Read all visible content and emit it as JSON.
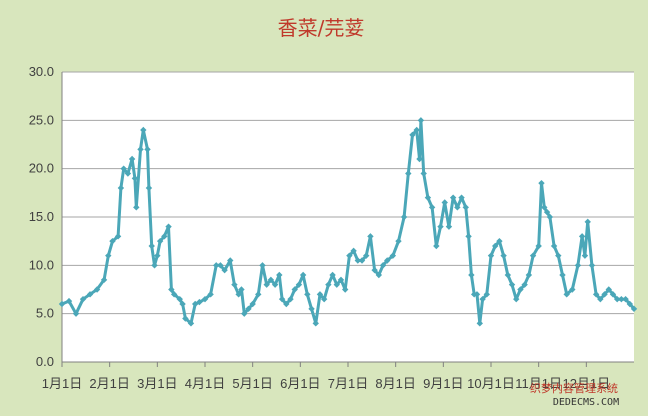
{
  "chart_data": {
    "type": "line",
    "title": "香菜/芫荽",
    "xlabel": "",
    "ylabel": "",
    "ylim": [
      0,
      30
    ],
    "yticks": [
      "0.0",
      "5.0",
      "10.0",
      "15.0",
      "20.0",
      "25.0",
      "30.0"
    ],
    "xticks": [
      "1月1日",
      "2月1日",
      "3月1日",
      "4月1日",
      "5月1日",
      "6月1日",
      "7月1日",
      "8月1日",
      "9月1日",
      "10月1日",
      "11月1日",
      "12月1日"
    ],
    "grid": "horizontal",
    "line_color": "#4ba7b8",
    "series": [
      {
        "values": [
          [
            0,
            6.0
          ],
          [
            5,
            6.3
          ],
          [
            10,
            5.0
          ],
          [
            15,
            6.5
          ],
          [
            20,
            7.0
          ],
          [
            25,
            7.5
          ],
          [
            30,
            8.5
          ],
          [
            33,
            11.0
          ],
          [
            36,
            12.5
          ],
          [
            40,
            13.0
          ],
          [
            42,
            18.0
          ],
          [
            44,
            20.0
          ],
          [
            47,
            19.5
          ],
          [
            50,
            21.0
          ],
          [
            52,
            19.0
          ],
          [
            53,
            16.0
          ],
          [
            56,
            22.0
          ],
          [
            58,
            24.0
          ],
          [
            61,
            22.0
          ],
          [
            62,
            18.0
          ],
          [
            64,
            12.0
          ],
          [
            66,
            10.0
          ],
          [
            68,
            11.0
          ],
          [
            70,
            12.5
          ],
          [
            73,
            13.0
          ],
          [
            76,
            14.0
          ],
          [
            78,
            7.5
          ],
          [
            80,
            7.0
          ],
          [
            84,
            6.5
          ],
          [
            86,
            6.0
          ],
          [
            88,
            4.5
          ],
          [
            92,
            4.0
          ],
          [
            95,
            6.0
          ],
          [
            98,
            6.2
          ],
          [
            102,
            6.5
          ],
          [
            106,
            7.0
          ],
          [
            110,
            10.0
          ],
          [
            113,
            10.0
          ],
          [
            116,
            9.5
          ],
          [
            120,
            10.5
          ],
          [
            123,
            8.0
          ],
          [
            126,
            7.0
          ],
          [
            128,
            7.5
          ],
          [
            130,
            5.0
          ],
          [
            133,
            5.5
          ],
          [
            136,
            6.0
          ],
          [
            140,
            7.0
          ],
          [
            143,
            10.0
          ],
          [
            146,
            8.0
          ],
          [
            149,
            8.5
          ],
          [
            152,
            8.0
          ],
          [
            155,
            9.0
          ],
          [
            157,
            6.5
          ],
          [
            160,
            6.0
          ],
          [
            163,
            6.5
          ],
          [
            166,
            7.5
          ],
          [
            169,
            8.0
          ],
          [
            172,
            9.0
          ],
          [
            175,
            7.0
          ],
          [
            178,
            5.5
          ],
          [
            181,
            4.0
          ],
          [
            184,
            7.0
          ],
          [
            187,
            6.5
          ],
          [
            190,
            8.0
          ],
          [
            193,
            9.0
          ],
          [
            196,
            8.0
          ],
          [
            199,
            8.5
          ],
          [
            202,
            7.5
          ],
          [
            205,
            11.0
          ],
          [
            208,
            11.5
          ],
          [
            211,
            10.5
          ],
          [
            214,
            10.5
          ],
          [
            217,
            11.0
          ],
          [
            220,
            13.0
          ],
          [
            223,
            9.5
          ],
          [
            226,
            9.0
          ],
          [
            229,
            10.0
          ],
          [
            232,
            10.5
          ],
          [
            236,
            11.0
          ],
          [
            240,
            12.5
          ],
          [
            244,
            15.0
          ],
          [
            247,
            19.5
          ],
          [
            250,
            23.5
          ],
          [
            253,
            24.0
          ],
          [
            255,
            21.0
          ],
          [
            256,
            25.0
          ],
          [
            258,
            19.5
          ],
          [
            261,
            17.0
          ],
          [
            264,
            16.0
          ],
          [
            267,
            12.0
          ],
          [
            270,
            14.0
          ],
          [
            273,
            16.5
          ],
          [
            276,
            14.0
          ],
          [
            279,
            17.0
          ],
          [
            282,
            16.0
          ],
          [
            285,
            17.0
          ],
          [
            288,
            16.0
          ],
          [
            290,
            13.0
          ],
          [
            292,
            9.0
          ],
          [
            294,
            7.0
          ],
          [
            296,
            7.0
          ],
          [
            298,
            4.0
          ],
          [
            300,
            6.5
          ],
          [
            303,
            7.0
          ],
          [
            306,
            11.0
          ],
          [
            309,
            12.0
          ],
          [
            312,
            12.5
          ],
          [
            315,
            11.0
          ],
          [
            318,
            9.0
          ],
          [
            321,
            8.0
          ],
          [
            324,
            6.5
          ],
          [
            327,
            7.5
          ],
          [
            330,
            8.0
          ],
          [
            333,
            9.0
          ],
          [
            336,
            11.0
          ],
          [
            340,
            12.0
          ],
          [
            342,
            18.5
          ],
          [
            344,
            16.0
          ],
          [
            346,
            15.5
          ],
          [
            348,
            15.0
          ],
          [
            351,
            12.0
          ],
          [
            354,
            11.0
          ],
          [
            357,
            9.0
          ],
          [
            360,
            7.0
          ],
          [
            364,
            7.5
          ],
          [
            368,
            10.0
          ],
          [
            371,
            13.0
          ],
          [
            373,
            11.0
          ],
          [
            375,
            14.5
          ],
          [
            378,
            10.0
          ],
          [
            381,
            7.0
          ],
          [
            384,
            6.5
          ],
          [
            387,
            7.0
          ],
          [
            390,
            7.5
          ],
          [
            393,
            7.0
          ],
          [
            396,
            6.5
          ],
          [
            399,
            6.5
          ],
          [
            402,
            6.5
          ],
          [
            405,
            6.0
          ],
          [
            408,
            5.5
          ]
        ]
      }
    ],
    "x_max": 408
  },
  "watermark": {
    "text": "织梦内容管理系统",
    "url": "DEDECMS.COM"
  }
}
